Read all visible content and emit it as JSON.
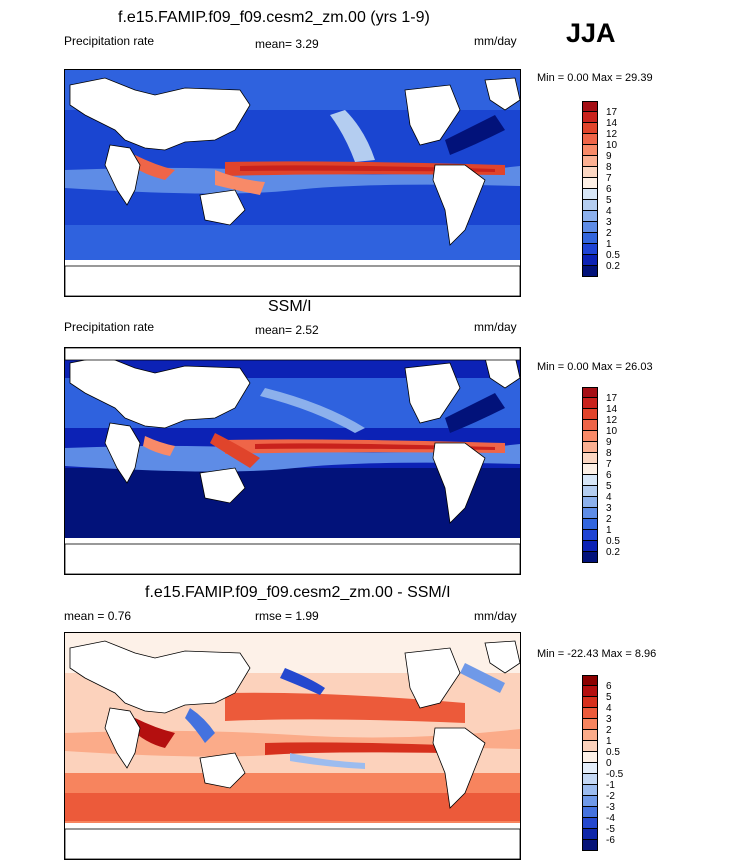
{
  "season": "JJA",
  "panels": [
    {
      "title": "f.e15.FAMIP.f09_f09.cesm2_zm.00 (yrs 1-9)",
      "left_label": "Precipitation rate",
      "center_label": "mean=   3.29",
      "units": "mm/day",
      "minmax": "Min =   0.00 Max =  29.39",
      "colorbar_labels": [
        "17",
        "14",
        "12",
        "10",
        "9",
        "8",
        "7",
        "6",
        "5",
        "4",
        "3",
        "2",
        "1",
        "0.5",
        "0.2"
      ],
      "palette": "sequential"
    },
    {
      "title": "SSM/I",
      "left_label": "Precipitation rate",
      "center_label": "mean=   2.52",
      "units": "mm/day",
      "minmax": "Min =   0.00 Max =  26.03",
      "colorbar_labels": [
        "17",
        "14",
        "12",
        "10",
        "9",
        "8",
        "7",
        "6",
        "5",
        "4",
        "3",
        "2",
        "1",
        "0.5",
        "0.2"
      ],
      "palette": "sequential"
    },
    {
      "title": "f.e15.FAMIP.f09_f09.cesm2_zm.00 - SSM/I",
      "left_label": "mean =   0.76",
      "center_label": "rmse =   1.99",
      "units": "mm/day",
      "minmax": "Min = -22.43 Max =   8.96",
      "colorbar_labels": [
        "6",
        "5",
        "4",
        "3",
        "2",
        "1",
        "0.5",
        "0",
        "-0.5",
        "-1",
        "-2",
        "-3",
        "-4",
        "-5",
        "-6"
      ],
      "palette": "diverging"
    }
  ],
  "colors": {
    "sequential": [
      "#a50f15",
      "#c9221c",
      "#e0442b",
      "#ef6548",
      "#f88a68",
      "#fbb092",
      "#fbd6c2",
      "#fdf0e6",
      "#d7e6f7",
      "#b4cdf0",
      "#8cb0ec",
      "#5e8ce6",
      "#3366dd",
      "#1f44d4",
      "#0c22b5",
      "#02127a"
    ],
    "diverging": [
      "#8b0000",
      "#b40f0f",
      "#d6301d",
      "#ec5a3a",
      "#f7845e",
      "#fbab89",
      "#fcd2bc",
      "#fdf1e8",
      "#e4eefb",
      "#c4d8f5",
      "#9cbcef",
      "#6f99e8",
      "#4472df",
      "#2448cf",
      "#0f27aa",
      "#061478"
    ],
    "land": "#ffffff",
    "coastline": "#000000"
  }
}
